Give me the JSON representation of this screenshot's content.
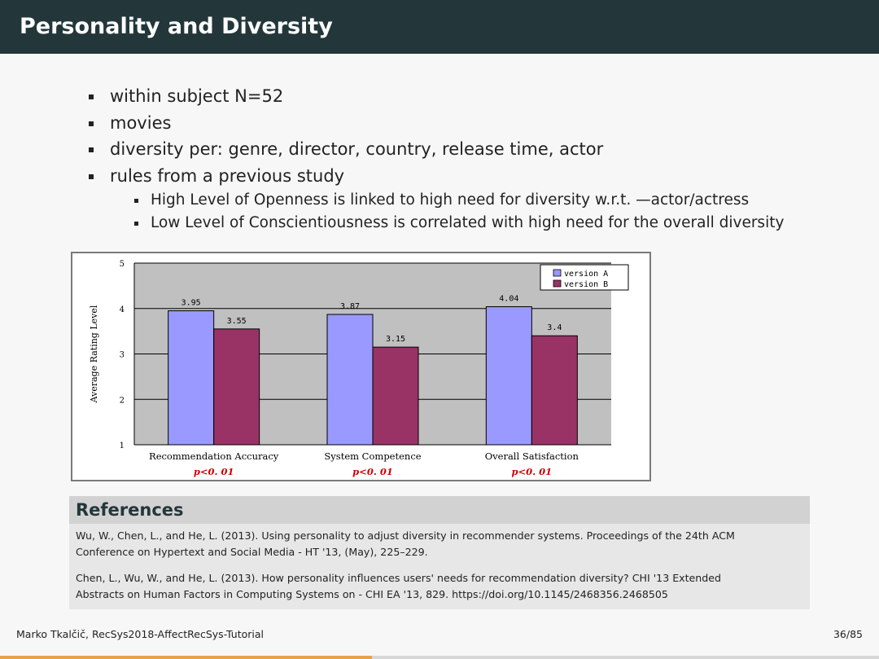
{
  "slide": {
    "title": "Personality and Diversity",
    "bullets": [
      "within subject N=52",
      "movies",
      "diversity per: genre, director, country, release time, actor",
      "rules from a previous study"
    ],
    "sub_bullets": [
      "High Level of Openness is linked to high need for diversity w.r.t. —actor/actress",
      "Low Level of Conscientiousness is correlated with high need for the overall diversity"
    ]
  },
  "chart_data": {
    "type": "bar",
    "categories": [
      "Recommendation Accuracy",
      "System Competence",
      "Overall Satisfaction"
    ],
    "category_notes": [
      "p<0. 01",
      "p<0. 01",
      "p<0. 01"
    ],
    "series": [
      {
        "name": "version A",
        "values": [
          3.95,
          3.87,
          4.04
        ],
        "labels": [
          "3.95",
          "3.87",
          "4.04"
        ],
        "color": "#9999ff"
      },
      {
        "name": "version B",
        "values": [
          3.55,
          3.15,
          3.4
        ],
        "labels": [
          "3.55",
          "3.15",
          "3.4"
        ],
        "color": "#993366"
      }
    ],
    "ylabel": "Average Rating Level",
    "ylim": [
      1,
      5
    ],
    "yticks": [
      1,
      2,
      3,
      4,
      5
    ],
    "ytick_labels": [
      "1",
      "2",
      "3",
      "4",
      "5"
    ],
    "grid": true,
    "legend": "top-right",
    "plot_bg": "#c0c0c0",
    "note_color": "#cc0000"
  },
  "references": {
    "heading": "References",
    "items": [
      {
        "line1": "Wu, W., Chen, L., and He, L. (2013). Using personality to adjust diversity in recommender systems. Proceedings of the 24th ACM",
        "line2": "Conference on Hypertext and Social Media - HT '13, (May), 225–229."
      },
      {
        "line1": "Chen, L., Wu, W., and He, L. (2013). How personality influences users' needs for recommendation diversity? CHI '13 Extended",
        "line2": "Abstracts on Human Factors in Computing Systems on - CHI EA '13, 829. https://doi.org/10.1145/2468356.2468505"
      }
    ]
  },
  "footer": {
    "author_event": "Marko Tkalčič, RecSys2018-AffectRecSys-Tutorial",
    "page": "36/85",
    "progress": 0.4235
  },
  "colors": {
    "header_bg": "#23373b",
    "progress": "#e8a14a"
  }
}
